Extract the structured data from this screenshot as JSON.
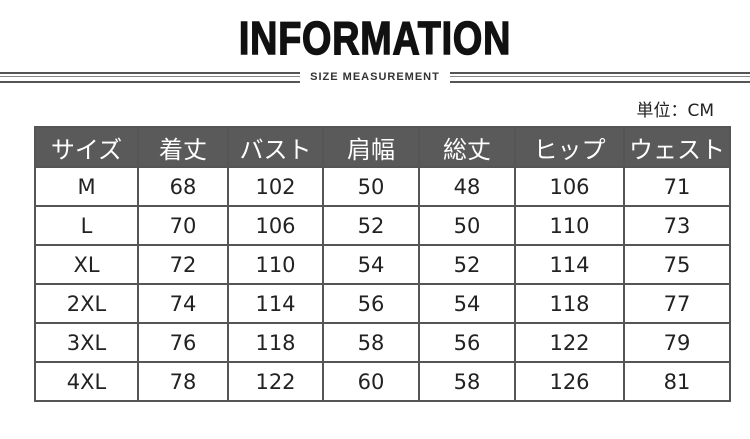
{
  "title": "INFORMATION",
  "subtitle": "SIZE MEASUREMENT",
  "unit": "単位：CM",
  "table": {
    "headers": [
      "サイズ",
      "着丈",
      "バスト",
      "肩幅",
      "総丈",
      "ヒップ",
      "ウェスト"
    ],
    "rows": [
      [
        "M",
        "68",
        "102",
        "50",
        "48",
        "106",
        "71"
      ],
      [
        "L",
        "70",
        "106",
        "52",
        "50",
        "110",
        "73"
      ],
      [
        "XL",
        "72",
        "110",
        "54",
        "52",
        "114",
        "75"
      ],
      [
        "2XL",
        "74",
        "114",
        "56",
        "54",
        "118",
        "77"
      ],
      [
        "3XL",
        "76",
        "118",
        "58",
        "56",
        "122",
        "79"
      ],
      [
        "4XL",
        "78",
        "122",
        "60",
        "58",
        "126",
        "81"
      ]
    ]
  },
  "colors": {
    "header_bg": "#5a5a5a",
    "border": "#555555"
  }
}
